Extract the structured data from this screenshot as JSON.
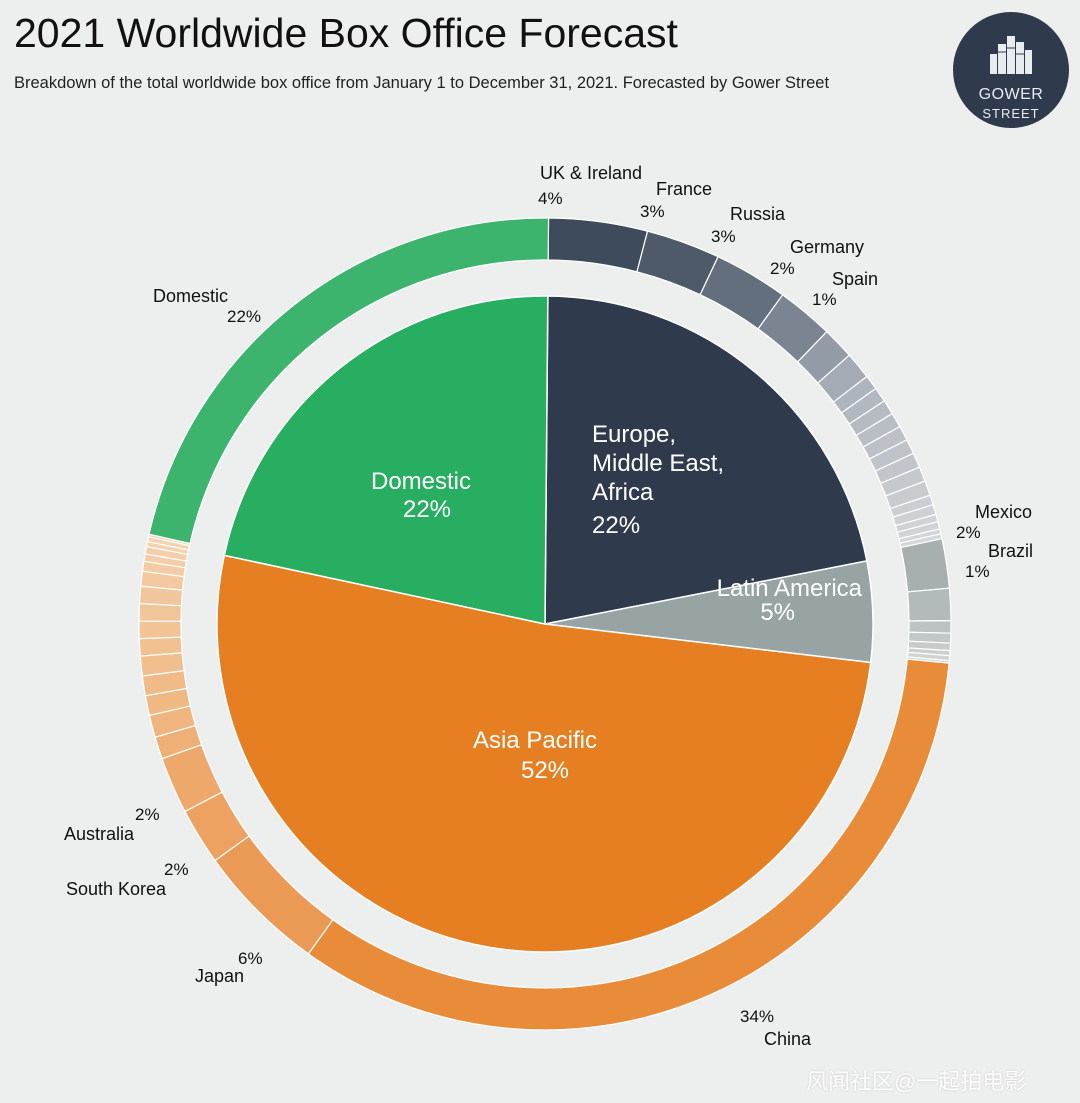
{
  "header": {
    "title": "2021 Worldwide Box Office Forecast",
    "subtitle": "Breakdown of the total worldwide box office from January 1 to December 31, 2021. Forecasted by Gower Street"
  },
  "logo": {
    "line1": "GOWER",
    "line2": "STREET",
    "icon": "buildings-icon"
  },
  "watermark": "风闻社区@一起拍电影",
  "chart_data": {
    "type": "pie",
    "variant": "sunburst",
    "inner": [
      {
        "label": "Europe,\nMiddle East,\nAfrica",
        "pct": "22%",
        "value": 22,
        "color": "#2f3b4d"
      },
      {
        "label": "Latin America",
        "pct": "5%",
        "value": 5,
        "color": "#98a4a4"
      },
      {
        "label": "Asia Pacific",
        "pct": "52%",
        "value": 52,
        "color": "#e67f22"
      },
      {
        "label": "Domestic",
        "pct": "22%",
        "value": 22,
        "color": "#27ae60"
      }
    ],
    "outer": [
      {
        "label": "UK & Ireland",
        "pct": "4%",
        "value": 4.0,
        "color": "#3e4b5d"
      },
      {
        "label": "France",
        "pct": "3%",
        "value": 3.0,
        "color": "#4e5a6a"
      },
      {
        "label": "Russia",
        "pct": "3%",
        "value": 3.0,
        "color": "#646f7d"
      },
      {
        "label": "Germany",
        "pct": "2%",
        "value": 2.3,
        "color": "#7b8592"
      },
      {
        "label": "Spain",
        "pct": "1%",
        "value": 1.3,
        "color": "#939ba6"
      },
      {
        "label": "",
        "value": 1.1,
        "color": "#a4abb4"
      },
      {
        "label": "",
        "value": 0.6,
        "color": "#aeb4bc"
      },
      {
        "label": "",
        "value": 0.6,
        "color": "#b2b8bf"
      },
      {
        "label": "",
        "value": 0.6,
        "color": "#b6bbc2"
      },
      {
        "label": "",
        "value": 0.6,
        "color": "#b9bec5"
      },
      {
        "label": "",
        "value": 0.6,
        "color": "#bcc1c7"
      },
      {
        "label": "",
        "value": 0.6,
        "color": "#bfc4ca"
      },
      {
        "label": "",
        "value": 0.6,
        "color": "#c2c6cc"
      },
      {
        "label": "",
        "value": 0.6,
        "color": "#c5c9ce"
      },
      {
        "label": "",
        "value": 0.6,
        "color": "#c8cbd0"
      },
      {
        "label": "",
        "value": 0.4,
        "color": "#cbced3"
      },
      {
        "label": "",
        "value": 0.4,
        "color": "#cdd0d4"
      },
      {
        "label": "",
        "value": 0.3,
        "color": "#cfd2d6"
      },
      {
        "label": "",
        "value": 0.3,
        "color": "#d1d4d7"
      },
      {
        "label": "",
        "value": 0.2,
        "color": "#d3d5d8"
      },
      {
        "label": "",
        "value": 0.2,
        "color": "#d5d7da"
      },
      {
        "label": "Mexico",
        "pct": "2%",
        "value": 2.0,
        "color": "#a7b0af"
      },
      {
        "label": "Brazil",
        "pct": "1%",
        "value": 1.3,
        "color": "#b3bbba"
      },
      {
        "label": "",
        "value": 0.5,
        "color": "#bcc3c2"
      },
      {
        "label": "",
        "value": 0.4,
        "color": "#c2c8c7"
      },
      {
        "label": "",
        "value": 0.3,
        "color": "#c7cccb"
      },
      {
        "label": "",
        "value": 0.2,
        "color": "#cbd0cf"
      },
      {
        "label": "",
        "value": 0.2,
        "color": "#cfd3d2"
      },
      {
        "label": "",
        "value": 0.1,
        "color": "#d2d6d5"
      },
      {
        "label": "China",
        "pct": "34%",
        "value": 34.0,
        "color": "#e98c3a"
      },
      {
        "label": "Japan",
        "pct": "6%",
        "value": 5.3,
        "color": "#eb9a55"
      },
      {
        "label": "South Korea",
        "pct": "2%",
        "value": 2.3,
        "color": "#eda262"
      },
      {
        "label": "Australia",
        "pct": "2%",
        "value": 2.3,
        "color": "#eea86c"
      },
      {
        "label": "",
        "value": 0.9,
        "color": "#efb077"
      },
      {
        "label": "",
        "value": 0.9,
        "color": "#f0b47e"
      },
      {
        "label": "",
        "value": 0.8,
        "color": "#f0b883"
      },
      {
        "label": "",
        "value": 0.8,
        "color": "#f1bb88"
      },
      {
        "label": "",
        "value": 0.8,
        "color": "#f1be8d"
      },
      {
        "label": "",
        "value": 0.7,
        "color": "#f2c192"
      },
      {
        "label": "",
        "value": 0.7,
        "color": "#f2c396"
      },
      {
        "label": "",
        "value": 0.7,
        "color": "#f3c59a"
      },
      {
        "label": "",
        "value": 0.7,
        "color": "#f3c79e"
      },
      {
        "label": "",
        "value": 0.6,
        "color": "#f4c9a1"
      },
      {
        "label": "",
        "value": 0.4,
        "color": "#f4cba5"
      },
      {
        "label": "",
        "value": 0.3,
        "color": "#f5cda8"
      },
      {
        "label": "",
        "value": 0.3,
        "color": "#f5cfab"
      },
      {
        "label": "",
        "value": 0.2,
        "color": "#f6d1ae"
      },
      {
        "label": "",
        "value": 0.2,
        "color": "#f6d3b1"
      },
      {
        "label": "",
        "value": 0.1,
        "color": "#f7d5b4"
      },
      {
        "label": "Domestic",
        "pct": "22%",
        "value": 22.0,
        "color": "#3db46d"
      }
    ]
  }
}
